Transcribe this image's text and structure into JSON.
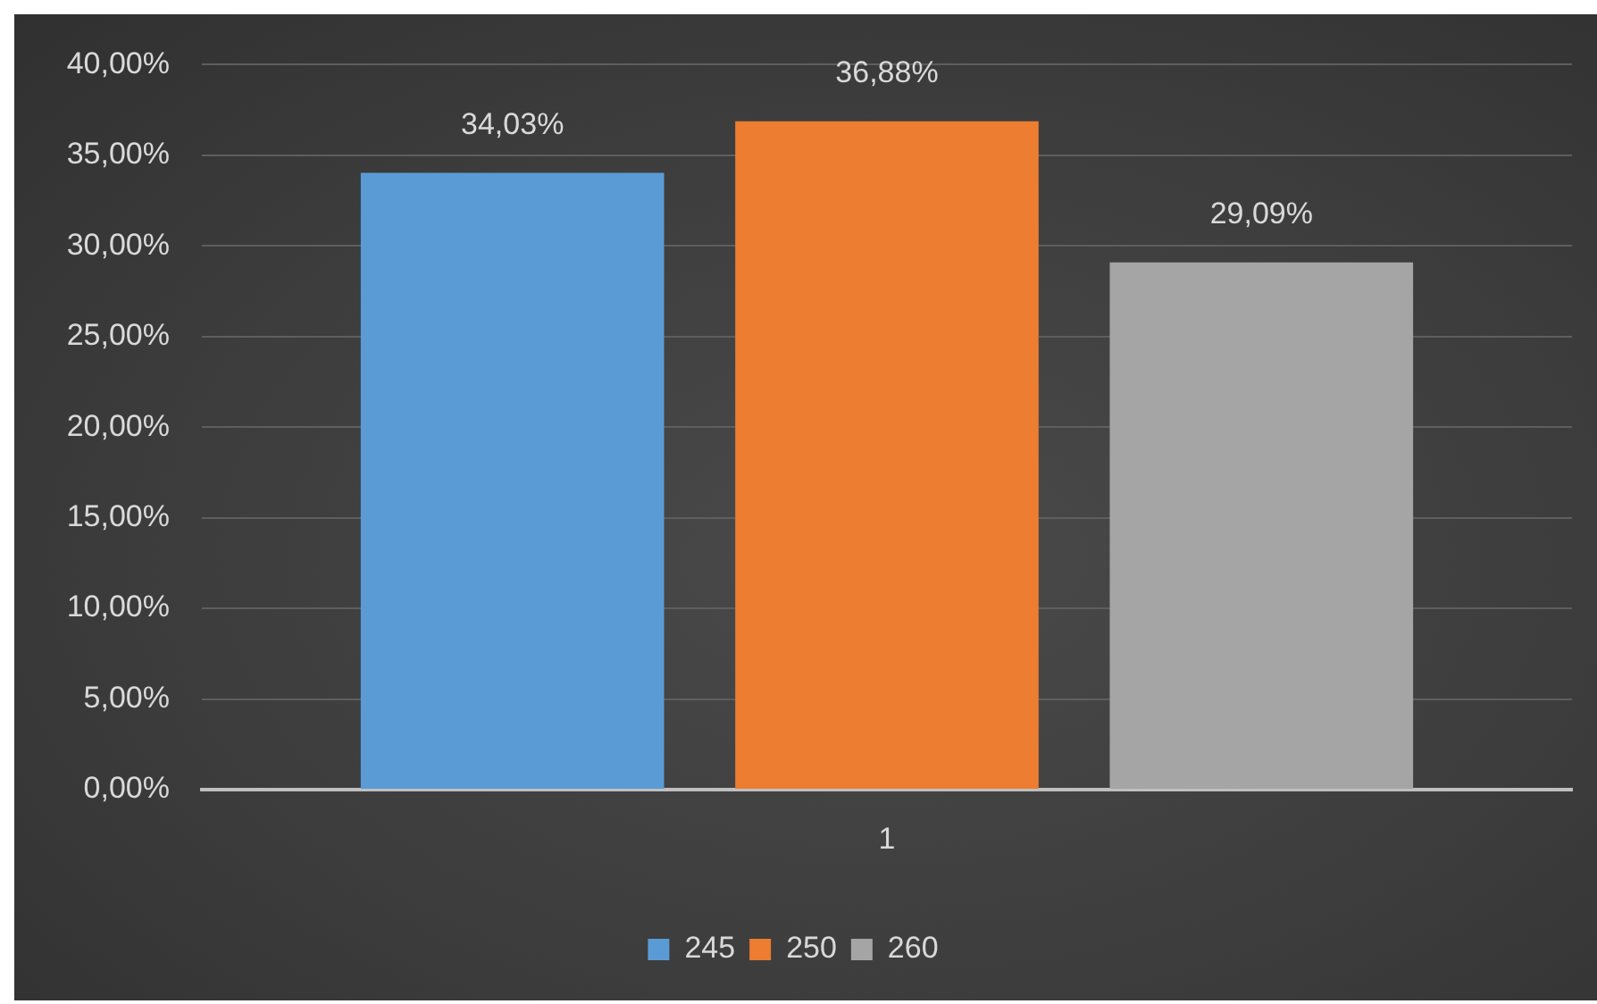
{
  "chart_data": {
    "type": "bar",
    "categories": [
      "1"
    ],
    "series": [
      {
        "name": "245",
        "color": "#5b9bd5",
        "values": [
          34.03
        ],
        "value_labels": [
          "34,03%"
        ]
      },
      {
        "name": "250",
        "color": "#ed7d31",
        "values": [
          36.88
        ],
        "value_labels": [
          "36,88%"
        ]
      },
      {
        "name": "260",
        "color": "#a5a5a5",
        "values": [
          29.09
        ],
        "value_labels": [
          "29,09%"
        ]
      }
    ],
    "ylim": [
      0,
      40
    ],
    "yticks": [
      {
        "value": 0,
        "label": "0,00%"
      },
      {
        "value": 5,
        "label": "5,00%"
      },
      {
        "value": 10,
        "label": "10,00%"
      },
      {
        "value": 15,
        "label": "15,00%"
      },
      {
        "value": 20,
        "label": "20,00%"
      },
      {
        "value": 25,
        "label": "25,00%"
      },
      {
        "value": 30,
        "label": "30,00%"
      },
      {
        "value": 35,
        "label": "35,00%"
      },
      {
        "value": 40,
        "label": "40,00%"
      }
    ],
    "grid": "y",
    "legend": "bottom"
  }
}
